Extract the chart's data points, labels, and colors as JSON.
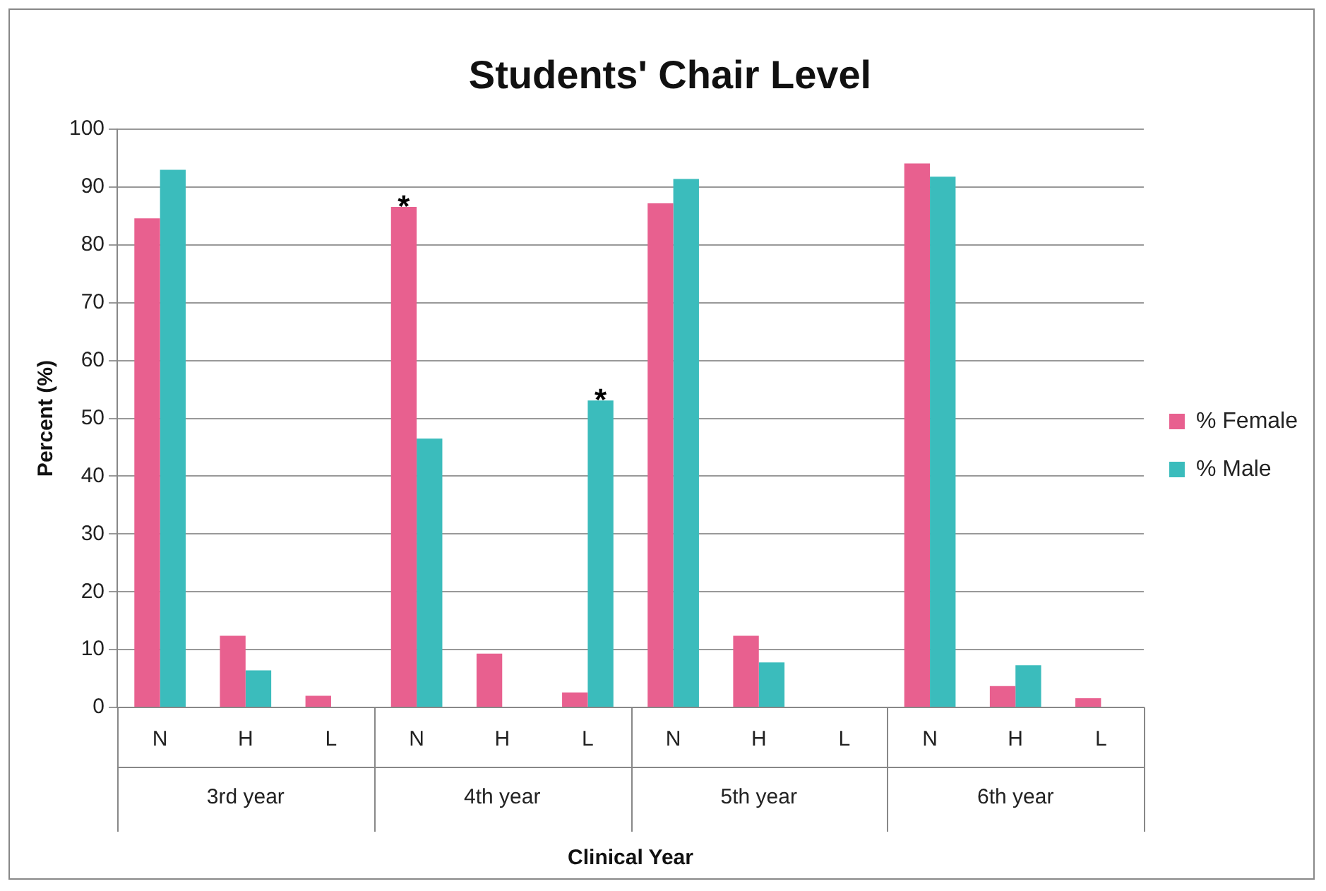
{
  "chart_data": {
    "type": "bar",
    "title": "Students' Chair Level",
    "xlabel": "Clinical Year",
    "ylabel": "Percent (%)",
    "categories": [
      "N",
      "H",
      "L",
      "N",
      "H",
      "L",
      "N",
      "H",
      "L",
      "N",
      "H",
      "L"
    ],
    "series": [
      {
        "name": "% Female",
        "color": "#e8608f",
        "values": [
          84.6,
          12.4,
          2.0,
          86.6,
          9.3,
          2.6,
          87.2,
          12.4,
          0,
          94.1,
          3.7,
          1.6
        ],
        "value_labels": [
          null,
          null,
          null,
          "*",
          null,
          null,
          null,
          null,
          null,
          null,
          null,
          null
        ]
      },
      {
        "name": "% Male",
        "color": "#3bbcbc",
        "values": [
          93.0,
          6.4,
          0,
          46.5,
          0,
          53.1,
          91.4,
          7.8,
          0,
          91.8,
          7.3,
          0
        ],
        "value_labels": [
          null,
          null,
          null,
          null,
          null,
          "*",
          null,
          null,
          null,
          null,
          null,
          null
        ]
      }
    ],
    "annotations": [
      "3rd year",
      "4th year",
      "5th year",
      "6th year"
    ],
    "ylim": [
      0,
      100
    ],
    "yticks": [
      0,
      10,
      20,
      30,
      40,
      50,
      60,
      70,
      80,
      90,
      100
    ],
    "grid": "y",
    "legend": "right"
  }
}
